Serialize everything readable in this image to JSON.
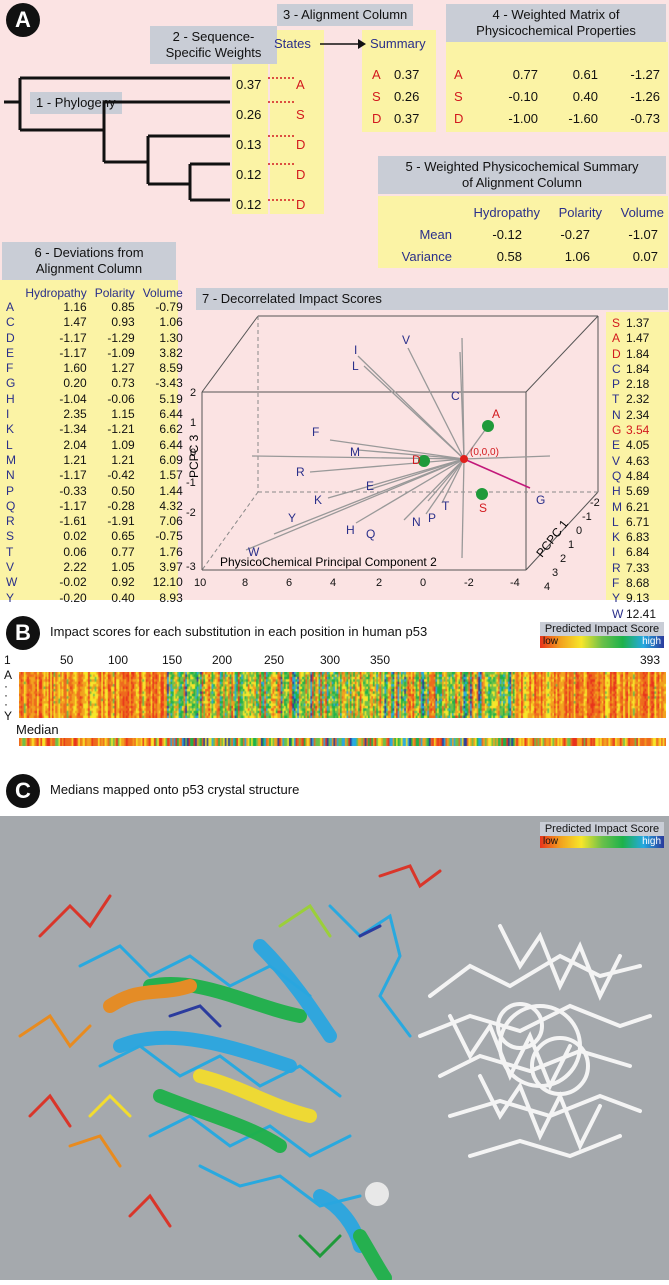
{
  "panel_a": {
    "badge": "A",
    "labels": {
      "phylogeny": "1 - Phylogeny",
      "weights": "2 - Sequence-\nSpecific Weights",
      "alignment": "3 - Alignment Column",
      "matrix": "4 - Weighted  Matrix of\nPhysicochemical Properties",
      "summary": "5 - Weighted Physicochemical Summary\nof Alignment Column",
      "deviations": "6 - Deviations from\nAlignment Column",
      "impact": "7 - Decorrelated Impact Scores"
    },
    "weights": [
      "0.37",
      "0.26",
      "0.13",
      "0.12",
      "0.12"
    ],
    "states_header": "States",
    "summary_header": "Summary",
    "states": [
      "A",
      "S",
      "D",
      "D",
      "D"
    ],
    "summary_rows": [
      {
        "aa": "A",
        "val": "0.37"
      },
      {
        "aa": "S",
        "val": "0.26"
      },
      {
        "aa": "D",
        "val": "0.37"
      }
    ],
    "matrix_rows": [
      {
        "aa": "A",
        "v": [
          "0.77",
          "0.61",
          "-1.27"
        ]
      },
      {
        "aa": "S",
        "v": [
          "-0.10",
          "0.40",
          "-1.26"
        ]
      },
      {
        "aa": "D",
        "v": [
          "-1.00",
          "-1.60",
          "-0.73"
        ]
      }
    ],
    "summary_cols": [
      "Hydropathy",
      "Polarity",
      "Volume"
    ],
    "summary_stats": [
      {
        "name": "Mean",
        "v": [
          "-0.12",
          "-0.27",
          "-1.07"
        ]
      },
      {
        "name": "Variance",
        "v": [
          "0.58",
          "1.06",
          "0.07"
        ]
      }
    ],
    "dev_cols": [
      "Hydropathy",
      "Polarity",
      "Volume"
    ],
    "deviations": [
      [
        "A",
        "1.16",
        "0.85",
        "-0.79"
      ],
      [
        "C",
        "1.47",
        "0.93",
        "1.06"
      ],
      [
        "D",
        "-1.17",
        "-1.29",
        "1.30"
      ],
      [
        "E",
        "-1.17",
        "-1.09",
        "3.82"
      ],
      [
        "F",
        "1.60",
        "1.27",
        "8.59"
      ],
      [
        "G",
        "0.20",
        "0.73",
        "-3.43"
      ],
      [
        "H",
        "-1.04",
        "-0.06",
        "5.19"
      ],
      [
        "I",
        "2.35",
        "1.15",
        "6.44"
      ],
      [
        "K",
        "-1.34",
        "-1.21",
        "6.62"
      ],
      [
        "L",
        "2.04",
        "1.09",
        "6.44"
      ],
      [
        "M",
        "1.21",
        "1.21",
        "6.09"
      ],
      [
        "N",
        "-1.17",
        "-0.42",
        "1.57"
      ],
      [
        "P",
        "-0.33",
        "0.50",
        "1.44"
      ],
      [
        "Q",
        "-1.17",
        "-0.28",
        "4.32"
      ],
      [
        "R",
        "-1.61",
        "-1.91",
        "7.06"
      ],
      [
        "S",
        "0.02",
        "0.65",
        "-0.75"
      ],
      [
        "T",
        "0.06",
        "0.77",
        "1.76"
      ],
      [
        "V",
        "2.22",
        "1.05",
        "3.97"
      ],
      [
        "W",
        "-0.02",
        "0.92",
        "12.10"
      ],
      [
        "Y",
        "-0.20",
        "0.40",
        "8.93"
      ]
    ],
    "scores": [
      [
        "S",
        "1.37"
      ],
      [
        "A",
        "1.47"
      ],
      [
        "D",
        "1.84"
      ],
      [
        "C",
        "1.84"
      ],
      [
        "P",
        "2.18"
      ],
      [
        "T",
        "2.32"
      ],
      [
        "N",
        "2.34"
      ],
      [
        "G",
        "3.54"
      ],
      [
        "E",
        "4.05"
      ],
      [
        "V",
        "4.63"
      ],
      [
        "Q",
        "4.84"
      ],
      [
        "H",
        "5.69"
      ],
      [
        "M",
        "6.21"
      ],
      [
        "L",
        "6.71"
      ],
      [
        "K",
        "6.83"
      ],
      [
        "I",
        "6.84"
      ],
      [
        "R",
        "7.33"
      ],
      [
        "F",
        "8.68"
      ],
      [
        "Y",
        "9.13"
      ],
      [
        "W",
        "12.41"
      ]
    ],
    "plot": {
      "pcpc3_label": "PCPC 3",
      "pc2_label": "PhysicoChemical Principal Component 2",
      "pcpc1_label": "PCPC 1",
      "origin_label": "(0,0,0)",
      "z_ticks": [
        "2",
        "1",
        "0",
        "-1",
        "-2",
        "-3"
      ],
      "x_ticks": [
        "10",
        "8",
        "6",
        "4",
        "2",
        "0",
        "-2",
        "-4"
      ],
      "y_ticks": [
        "-2",
        "-1",
        "0",
        "1",
        "2",
        "3",
        "4"
      ],
      "letters": [
        "I",
        "V",
        "L",
        "C",
        "A",
        "F",
        "M",
        "R",
        "D",
        "K",
        "E",
        "G",
        "S",
        "T",
        "Y",
        "N",
        "P",
        "H",
        "Q",
        "W"
      ]
    }
  },
  "panel_b": {
    "badge": "B",
    "title": "Impact scores for each substitution in each position in human p53",
    "legend_title": "Predicted Impact Score",
    "legend_low": "low",
    "legend_high": "high",
    "positions": [
      "1",
      "50",
      "100",
      "150",
      "200",
      "250",
      "300",
      "350",
      "393"
    ],
    "row_first": "A",
    "row_last": "Y",
    "median_label": "Median"
  },
  "panel_c": {
    "badge": "C",
    "title": "Medians mapped onto p53 crystal structure",
    "legend_title": "Predicted Impact Score",
    "legend_low": "low",
    "legend_high": "high"
  }
}
